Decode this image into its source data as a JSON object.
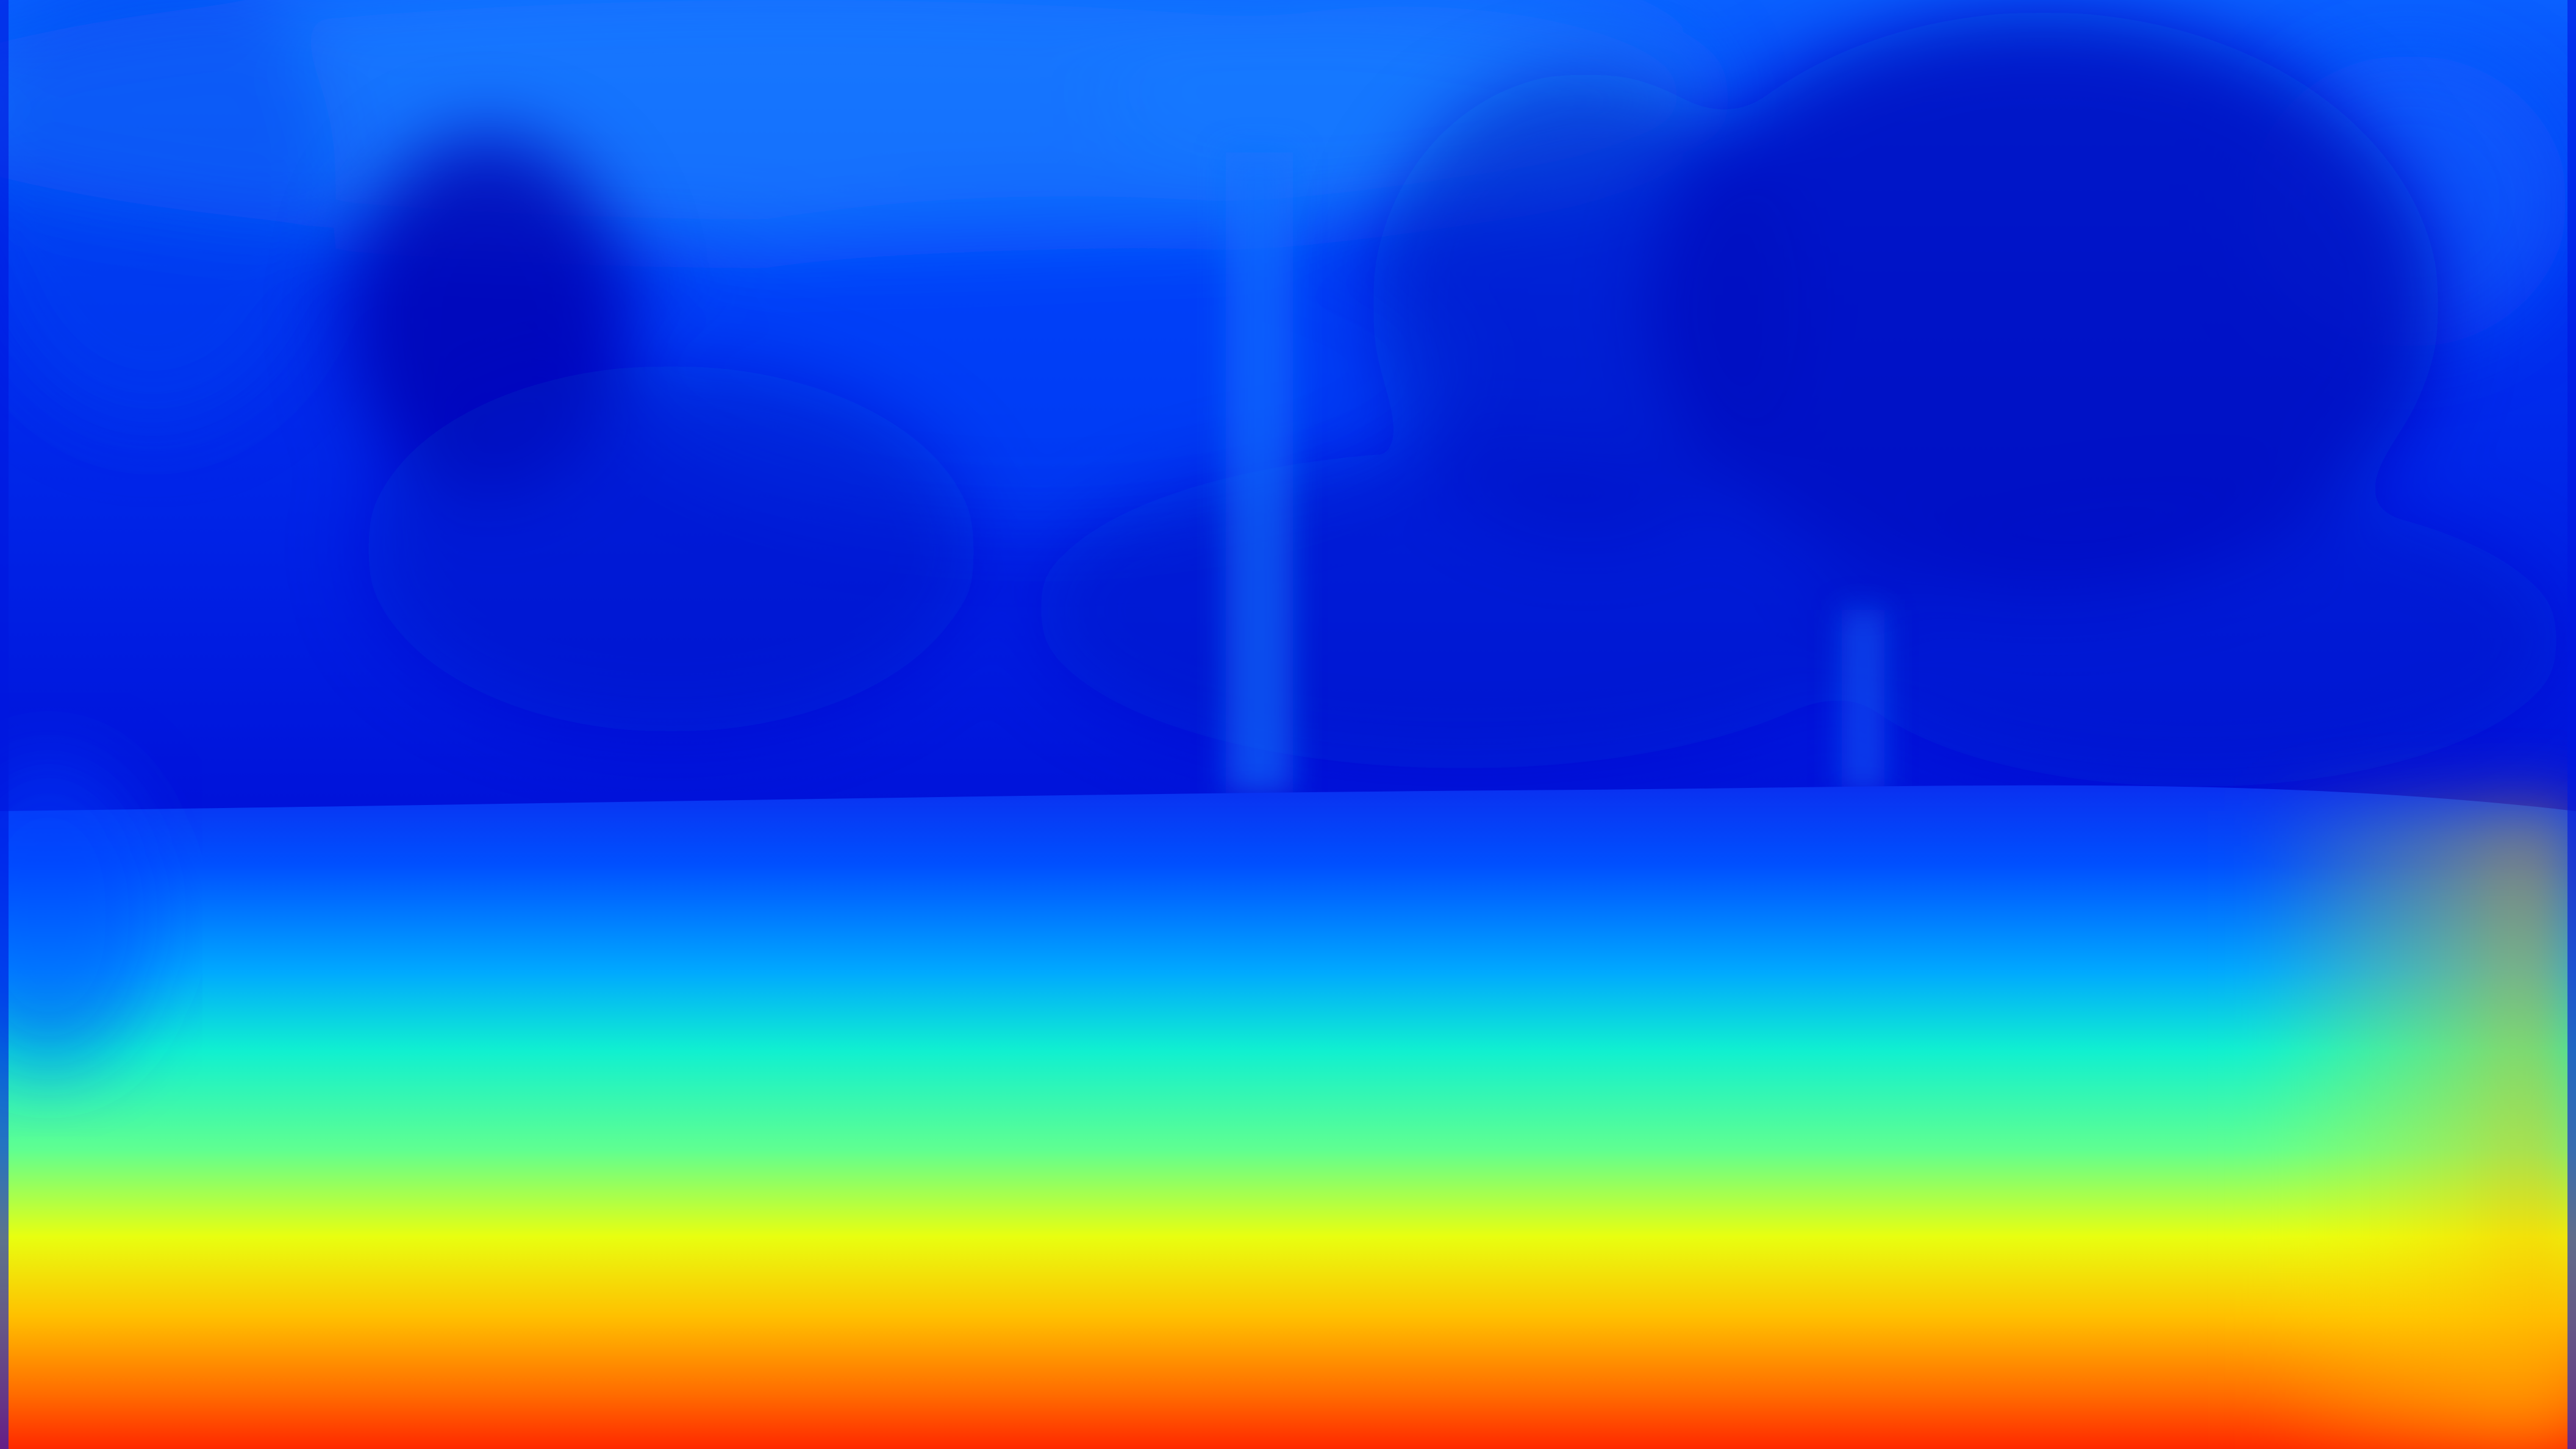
{
  "image": {
    "kind": "depth-map",
    "colormap": "jet",
    "colors": {
      "far": "#0000c8",
      "mid_far": "#0a3cff",
      "mid": "#00a0ff",
      "mid_near": "#20ffb0",
      "near_mid": "#f0ff10",
      "near": "#ff8000",
      "nearest": "#ff2000"
    }
  }
}
